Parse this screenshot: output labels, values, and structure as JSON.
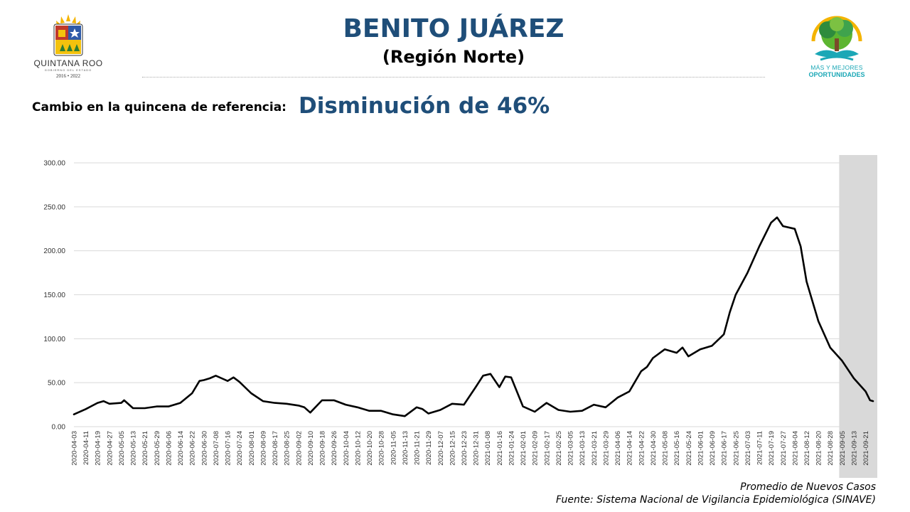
{
  "header": {
    "title": "BENITO JUÁREZ",
    "subtitle": "(Región Norte)",
    "left_logo": {
      "name": "QUINTANA ROO",
      "sub": "GOBIERNO DEL ESTADO",
      "years": "2016 • 2022"
    },
    "right_logo": {
      "line1": "MÁS Y MEJORES",
      "line2": "OPORTUNIDADES"
    }
  },
  "change": {
    "label": "Cambio en la quincena de referencia:",
    "value": "Disminución de 46%"
  },
  "footer": {
    "legend": "Promedio de Nuevos Casos",
    "source": "Fuente: Sistema Nacional de Vigilancia Epidemiológica (SINAVE)"
  },
  "colors": {
    "title": "#1f4e79",
    "line": "#000000",
    "shade": "#d9d9d9",
    "grid": "#d9d9d9",
    "logo_teal": "#1aa7b6"
  },
  "chart_data": {
    "type": "line",
    "xlabel": "",
    "ylabel": "",
    "ylim": [
      0,
      300
    ],
    "yticks": [
      "0.00",
      "50.00",
      "100.00",
      "150.00",
      "200.00",
      "250.00",
      "300.00"
    ],
    "grid": true,
    "x_start": "2020-04-03",
    "x_end": "2021-09-26",
    "xticks": [
      "2020-04-03",
      "2020-04-11",
      "2020-04-19",
      "2020-04-27",
      "2020-05-05",
      "2020-05-13",
      "2020-05-21",
      "2020-05-29",
      "2020-06-06",
      "2020-06-14",
      "2020-06-22",
      "2020-06-30",
      "2020-07-08",
      "2020-07-16",
      "2020-07-24",
      "2020-08-01",
      "2020-08-09",
      "2020-08-17",
      "2020-08-25",
      "2020-09-02",
      "2020-09-10",
      "2020-09-18",
      "2020-09-26",
      "2020-10-04",
      "2020-10-12",
      "2020-10-20",
      "2020-10-28",
      "2020-11-05",
      "2020-11-13",
      "2020-11-21",
      "2020-11-29",
      "2020-12-07",
      "2020-12-15",
      "2020-12-23",
      "2020-12-31",
      "2021-01-08",
      "2021-01-16",
      "2021-01-24",
      "2021-02-01",
      "2021-02-09",
      "2021-02-17",
      "2021-02-25",
      "2021-03-05",
      "2021-03-13",
      "2021-03-21",
      "2021-03-29",
      "2021-04-06",
      "2021-04-14",
      "2021-04-22",
      "2021-04-30",
      "2021-05-08",
      "2021-05-16",
      "2021-05-24",
      "2021-06-01",
      "2021-06-09",
      "2021-06-17",
      "2021-06-25",
      "2021-07-03",
      "2021-07-11",
      "2021-07-19",
      "2021-07-27",
      "2021-08-04",
      "2021-08-12",
      "2021-08-20",
      "2021-08-28",
      "2021-09-05",
      "2021-09-13",
      "2021-09-21"
    ],
    "shaded_range": [
      "2021-09-05",
      "2021-09-26"
    ],
    "series": [
      {
        "x": [
          "2020-04-03",
          "2020-04-11",
          "2020-04-19",
          "2020-04-23",
          "2020-04-27",
          "2020-05-05",
          "2020-05-07",
          "2020-05-13",
          "2020-05-21",
          "2020-05-29",
          "2020-06-06",
          "2020-06-14",
          "2020-06-22",
          "2020-06-27",
          "2020-06-30",
          "2020-07-04",
          "2020-07-08",
          "2020-07-12",
          "2020-07-16",
          "2020-07-20",
          "2020-07-24",
          "2020-08-01",
          "2020-08-09",
          "2020-08-17",
          "2020-08-25",
          "2020-09-02",
          "2020-09-06",
          "2020-09-10",
          "2020-09-18",
          "2020-09-26",
          "2020-10-04",
          "2020-10-12",
          "2020-10-20",
          "2020-10-28",
          "2020-11-05",
          "2020-11-13",
          "2020-11-21",
          "2020-11-25",
          "2020-11-29",
          "2020-12-07",
          "2020-12-15",
          "2020-12-23",
          "2020-12-31",
          "2021-01-05",
          "2021-01-10",
          "2021-01-16",
          "2021-01-20",
          "2021-01-24",
          "2021-02-01",
          "2021-02-09",
          "2021-02-17",
          "2021-02-25",
          "2021-03-05",
          "2021-03-13",
          "2021-03-21",
          "2021-03-29",
          "2021-04-06",
          "2021-04-14",
          "2021-04-22",
          "2021-04-26",
          "2021-04-30",
          "2021-05-08",
          "2021-05-16",
          "2021-05-20",
          "2021-05-24",
          "2021-06-01",
          "2021-06-09",
          "2021-06-17",
          "2021-06-21",
          "2021-06-25",
          "2021-07-03",
          "2021-07-11",
          "2021-07-19",
          "2021-07-23",
          "2021-07-27",
          "2021-08-04",
          "2021-08-08",
          "2021-08-12",
          "2021-08-20",
          "2021-08-28",
          "2021-09-05",
          "2021-09-13",
          "2021-09-21",
          "2021-09-24",
          "2021-09-26"
        ],
        "y": [
          14,
          20,
          27,
          29,
          26,
          27,
          30,
          21,
          21,
          23,
          23,
          27,
          38,
          52,
          53,
          55,
          58,
          55,
          52,
          56,
          51,
          38,
          29,
          27,
          26,
          24,
          22,
          16,
          30,
          30,
          25,
          22,
          18,
          18,
          14,
          12,
          22,
          20,
          15,
          19,
          26,
          25,
          45,
          58,
          60,
          45,
          57,
          56,
          23,
          17,
          27,
          19,
          17,
          18,
          25,
          22,
          33,
          40,
          63,
          68,
          78,
          88,
          84,
          90,
          80,
          88,
          92,
          105,
          130,
          150,
          175,
          205,
          232,
          238,
          228,
          225,
          205,
          165,
          120,
          90,
          75,
          55,
          40,
          30,
          29
        ]
      }
    ]
  }
}
